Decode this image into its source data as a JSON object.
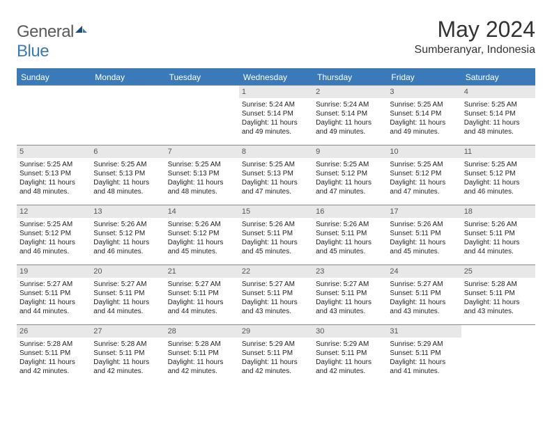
{
  "logo": {
    "word1": "General",
    "word2": "Blue"
  },
  "title": "May 2024",
  "location": "Sumberanyar, Indonesia",
  "colors": {
    "header_bg": "#3a7ab8",
    "header_text": "#ffffff",
    "daynum_bg": "#e8e8e8",
    "daynum_text": "#555555",
    "border": "#888888",
    "text": "#222222",
    "logo_gray": "#5a5a5a",
    "logo_blue": "#3a7ab8"
  },
  "day_headers": [
    "Sunday",
    "Monday",
    "Tuesday",
    "Wednesday",
    "Thursday",
    "Friday",
    "Saturday"
  ],
  "weeks": [
    [
      null,
      null,
      null,
      {
        "n": "1",
        "sr": "Sunrise: 5:24 AM",
        "ss": "Sunset: 5:14 PM",
        "d1": "Daylight: 11 hours",
        "d2": "and 49 minutes."
      },
      {
        "n": "2",
        "sr": "Sunrise: 5:24 AM",
        "ss": "Sunset: 5:14 PM",
        "d1": "Daylight: 11 hours",
        "d2": "and 49 minutes."
      },
      {
        "n": "3",
        "sr": "Sunrise: 5:25 AM",
        "ss": "Sunset: 5:14 PM",
        "d1": "Daylight: 11 hours",
        "d2": "and 49 minutes."
      },
      {
        "n": "4",
        "sr": "Sunrise: 5:25 AM",
        "ss": "Sunset: 5:14 PM",
        "d1": "Daylight: 11 hours",
        "d2": "and 48 minutes."
      }
    ],
    [
      {
        "n": "5",
        "sr": "Sunrise: 5:25 AM",
        "ss": "Sunset: 5:13 PM",
        "d1": "Daylight: 11 hours",
        "d2": "and 48 minutes."
      },
      {
        "n": "6",
        "sr": "Sunrise: 5:25 AM",
        "ss": "Sunset: 5:13 PM",
        "d1": "Daylight: 11 hours",
        "d2": "and 48 minutes."
      },
      {
        "n": "7",
        "sr": "Sunrise: 5:25 AM",
        "ss": "Sunset: 5:13 PM",
        "d1": "Daylight: 11 hours",
        "d2": "and 48 minutes."
      },
      {
        "n": "8",
        "sr": "Sunrise: 5:25 AM",
        "ss": "Sunset: 5:13 PM",
        "d1": "Daylight: 11 hours",
        "d2": "and 47 minutes."
      },
      {
        "n": "9",
        "sr": "Sunrise: 5:25 AM",
        "ss": "Sunset: 5:12 PM",
        "d1": "Daylight: 11 hours",
        "d2": "and 47 minutes."
      },
      {
        "n": "10",
        "sr": "Sunrise: 5:25 AM",
        "ss": "Sunset: 5:12 PM",
        "d1": "Daylight: 11 hours",
        "d2": "and 47 minutes."
      },
      {
        "n": "11",
        "sr": "Sunrise: 5:25 AM",
        "ss": "Sunset: 5:12 PM",
        "d1": "Daylight: 11 hours",
        "d2": "and 46 minutes."
      }
    ],
    [
      {
        "n": "12",
        "sr": "Sunrise: 5:25 AM",
        "ss": "Sunset: 5:12 PM",
        "d1": "Daylight: 11 hours",
        "d2": "and 46 minutes."
      },
      {
        "n": "13",
        "sr": "Sunrise: 5:26 AM",
        "ss": "Sunset: 5:12 PM",
        "d1": "Daylight: 11 hours",
        "d2": "and 46 minutes."
      },
      {
        "n": "14",
        "sr": "Sunrise: 5:26 AM",
        "ss": "Sunset: 5:12 PM",
        "d1": "Daylight: 11 hours",
        "d2": "and 45 minutes."
      },
      {
        "n": "15",
        "sr": "Sunrise: 5:26 AM",
        "ss": "Sunset: 5:11 PM",
        "d1": "Daylight: 11 hours",
        "d2": "and 45 minutes."
      },
      {
        "n": "16",
        "sr": "Sunrise: 5:26 AM",
        "ss": "Sunset: 5:11 PM",
        "d1": "Daylight: 11 hours",
        "d2": "and 45 minutes."
      },
      {
        "n": "17",
        "sr": "Sunrise: 5:26 AM",
        "ss": "Sunset: 5:11 PM",
        "d1": "Daylight: 11 hours",
        "d2": "and 45 minutes."
      },
      {
        "n": "18",
        "sr": "Sunrise: 5:26 AM",
        "ss": "Sunset: 5:11 PM",
        "d1": "Daylight: 11 hours",
        "d2": "and 44 minutes."
      }
    ],
    [
      {
        "n": "19",
        "sr": "Sunrise: 5:27 AM",
        "ss": "Sunset: 5:11 PM",
        "d1": "Daylight: 11 hours",
        "d2": "and 44 minutes."
      },
      {
        "n": "20",
        "sr": "Sunrise: 5:27 AM",
        "ss": "Sunset: 5:11 PM",
        "d1": "Daylight: 11 hours",
        "d2": "and 44 minutes."
      },
      {
        "n": "21",
        "sr": "Sunrise: 5:27 AM",
        "ss": "Sunset: 5:11 PM",
        "d1": "Daylight: 11 hours",
        "d2": "and 44 minutes."
      },
      {
        "n": "22",
        "sr": "Sunrise: 5:27 AM",
        "ss": "Sunset: 5:11 PM",
        "d1": "Daylight: 11 hours",
        "d2": "and 43 minutes."
      },
      {
        "n": "23",
        "sr": "Sunrise: 5:27 AM",
        "ss": "Sunset: 5:11 PM",
        "d1": "Daylight: 11 hours",
        "d2": "and 43 minutes."
      },
      {
        "n": "24",
        "sr": "Sunrise: 5:27 AM",
        "ss": "Sunset: 5:11 PM",
        "d1": "Daylight: 11 hours",
        "d2": "and 43 minutes."
      },
      {
        "n": "25",
        "sr": "Sunrise: 5:28 AM",
        "ss": "Sunset: 5:11 PM",
        "d1": "Daylight: 11 hours",
        "d2": "and 43 minutes."
      }
    ],
    [
      {
        "n": "26",
        "sr": "Sunrise: 5:28 AM",
        "ss": "Sunset: 5:11 PM",
        "d1": "Daylight: 11 hours",
        "d2": "and 42 minutes."
      },
      {
        "n": "27",
        "sr": "Sunrise: 5:28 AM",
        "ss": "Sunset: 5:11 PM",
        "d1": "Daylight: 11 hours",
        "d2": "and 42 minutes."
      },
      {
        "n": "28",
        "sr": "Sunrise: 5:28 AM",
        "ss": "Sunset: 5:11 PM",
        "d1": "Daylight: 11 hours",
        "d2": "and 42 minutes."
      },
      {
        "n": "29",
        "sr": "Sunrise: 5:29 AM",
        "ss": "Sunset: 5:11 PM",
        "d1": "Daylight: 11 hours",
        "d2": "and 42 minutes."
      },
      {
        "n": "30",
        "sr": "Sunrise: 5:29 AM",
        "ss": "Sunset: 5:11 PM",
        "d1": "Daylight: 11 hours",
        "d2": "and 42 minutes."
      },
      {
        "n": "31",
        "sr": "Sunrise: 5:29 AM",
        "ss": "Sunset: 5:11 PM",
        "d1": "Daylight: 11 hours",
        "d2": "and 41 minutes."
      },
      null
    ]
  ]
}
